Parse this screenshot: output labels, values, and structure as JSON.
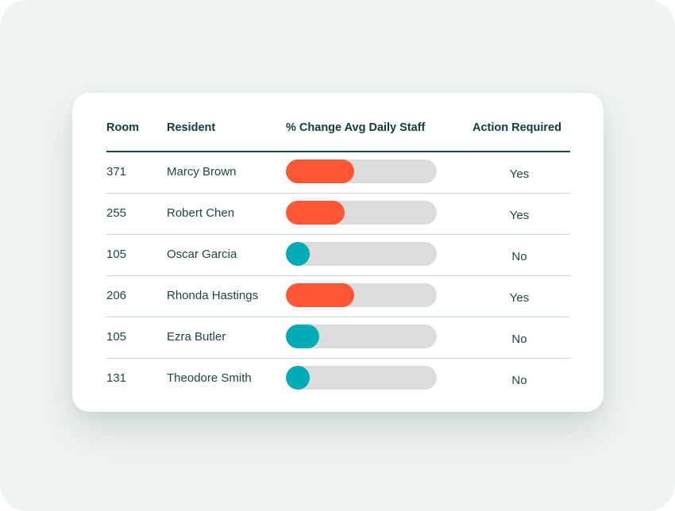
{
  "colors": {
    "increase": "#ff5733",
    "decrease": "#00acb6",
    "track": "#dcdcdc",
    "header_text": "#123b3e"
  },
  "table": {
    "headers": {
      "room": "Room",
      "resident": "Resident",
      "change": "% Change Avg Daily Staff",
      "action": "Action Required"
    },
    "rows": [
      {
        "room": "371",
        "resident": "Marcy Brown",
        "change_fill": 0.45,
        "status": "increase",
        "action": "Yes"
      },
      {
        "room": "255",
        "resident": "Robert Chen",
        "change_fill": 0.39,
        "status": "increase",
        "action": "Yes"
      },
      {
        "room": "105",
        "resident": "Oscar Garcia",
        "change_fill": 0.16,
        "status": "decrease",
        "action": "No"
      },
      {
        "room": "206",
        "resident": "Rhonda Hastings",
        "change_fill": 0.45,
        "status": "increase",
        "action": "Yes"
      },
      {
        "room": "105",
        "resident": "Ezra Butler",
        "change_fill": 0.22,
        "status": "decrease",
        "action": "No"
      },
      {
        "room": "131",
        "resident": "Theodore Smith",
        "change_fill": 0.16,
        "status": "decrease",
        "action": "No"
      }
    ]
  }
}
